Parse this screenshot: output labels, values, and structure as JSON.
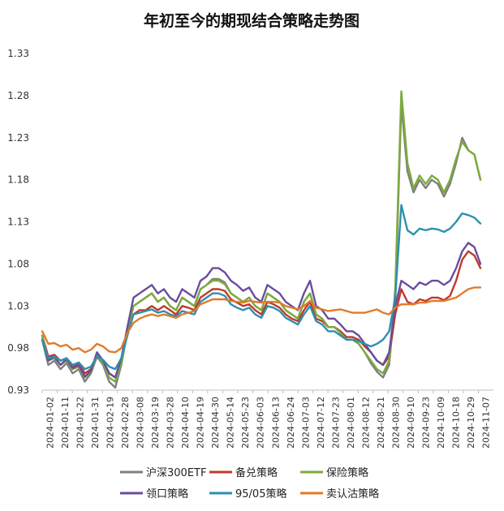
{
  "chart_data": {
    "type": "line",
    "title": "年初至今的期现结合策略走势图",
    "xlabel": "",
    "ylabel": "",
    "ylim": [
      0.93,
      1.33
    ],
    "y_ticks": [
      "0.93",
      "0.98",
      "1.03",
      "1.08",
      "1.13",
      "1.18",
      "1.23",
      "1.28",
      "1.33"
    ],
    "x_ticks": [
      "2024-01-02",
      "2024-01-11",
      "2024-01-22",
      "2024-01-31",
      "2024-02-19",
      "2024-02-28",
      "2024-03-08",
      "2024-03-19",
      "2024-03-28",
      "2024-04-10",
      "2024-04-19",
      "2024-04-30",
      "2024-05-14",
      "2024-05-23",
      "2024-06-03",
      "2024-06-13",
      "2024-06-24",
      "2024-07-03",
      "2024-07-12",
      "2024-07-23",
      "2024-08-01",
      "2024-08-12",
      "2024-08-21",
      "2024-08-30",
      "2024-09-10",
      "2024-09-23",
      "2024-10-09",
      "2024-10-18",
      "2024-10-29",
      "2024-11-07"
    ],
    "grid": "none",
    "legend_position": "bottom",
    "series": [
      {
        "name": "沪深300ETF",
        "color": "#7f7f7f",
        "values": [
          0.99,
          0.96,
          0.965,
          0.955,
          0.962,
          0.95,
          0.955,
          0.94,
          0.95,
          0.97,
          0.96,
          0.94,
          0.933,
          0.96,
          1.0,
          1.03,
          1.035,
          1.04,
          1.045,
          1.035,
          1.04,
          1.03,
          1.025,
          1.04,
          1.035,
          1.03,
          1.05,
          1.055,
          1.062,
          1.062,
          1.058,
          1.045,
          1.04,
          1.035,
          1.04,
          1.03,
          1.025,
          1.045,
          1.04,
          1.035,
          1.025,
          1.02,
          1.015,
          1.035,
          1.045,
          1.02,
          1.015,
          1.005,
          1.005,
          0.998,
          0.99,
          0.99,
          0.985,
          0.975,
          0.962,
          0.952,
          0.945,
          0.96,
          1.04,
          1.27,
          1.19,
          1.165,
          1.18,
          1.17,
          1.18,
          1.175,
          1.16,
          1.175,
          1.2,
          1.23,
          1.215,
          1.21,
          1.18
        ]
      },
      {
        "name": "备兑策略",
        "color": "#c0392b",
        "values": [
          0.995,
          0.97,
          0.972,
          0.965,
          0.968,
          0.958,
          0.962,
          0.95,
          0.955,
          0.97,
          0.965,
          0.95,
          0.945,
          0.965,
          1.0,
          1.02,
          1.025,
          1.025,
          1.03,
          1.025,
          1.03,
          1.025,
          1.02,
          1.03,
          1.028,
          1.025,
          1.04,
          1.045,
          1.05,
          1.05,
          1.048,
          1.038,
          1.034,
          1.03,
          1.032,
          1.025,
          1.02,
          1.035,
          1.032,
          1.028,
          1.02,
          1.015,
          1.012,
          1.025,
          1.035,
          1.015,
          1.012,
          1.005,
          1.005,
          1.0,
          0.993,
          0.993,
          0.99,
          0.982,
          0.975,
          0.965,
          0.96,
          0.97,
          1.02,
          1.05,
          1.035,
          1.032,
          1.038,
          1.036,
          1.04,
          1.04,
          1.037,
          1.042,
          1.06,
          1.085,
          1.095,
          1.09,
          1.075
        ]
      },
      {
        "name": "保险策略",
        "color": "#7cab3c",
        "values": [
          0.995,
          0.965,
          0.968,
          0.96,
          0.965,
          0.955,
          0.958,
          0.945,
          0.952,
          0.972,
          0.962,
          0.945,
          0.94,
          0.962,
          1.0,
          1.03,
          1.035,
          1.04,
          1.045,
          1.035,
          1.04,
          1.03,
          1.025,
          1.04,
          1.035,
          1.03,
          1.05,
          1.055,
          1.06,
          1.06,
          1.056,
          1.045,
          1.04,
          1.035,
          1.04,
          1.03,
          1.025,
          1.045,
          1.04,
          1.035,
          1.025,
          1.02,
          1.015,
          1.035,
          1.045,
          1.02,
          1.015,
          1.005,
          1.005,
          0.998,
          0.99,
          0.99,
          0.985,
          0.975,
          0.965,
          0.955,
          0.95,
          0.965,
          1.05,
          1.285,
          1.2,
          1.17,
          1.185,
          1.175,
          1.185,
          1.18,
          1.165,
          1.18,
          1.205,
          1.225,
          1.215,
          1.21,
          1.18
        ]
      },
      {
        "name": "领口策略",
        "color": "#6a4c9c",
        "values": [
          0.99,
          0.965,
          0.97,
          0.96,
          0.967,
          0.956,
          0.96,
          0.946,
          0.953,
          0.975,
          0.965,
          0.95,
          0.945,
          0.968,
          1.005,
          1.04,
          1.045,
          1.05,
          1.055,
          1.045,
          1.05,
          1.04,
          1.035,
          1.05,
          1.045,
          1.04,
          1.06,
          1.065,
          1.075,
          1.075,
          1.07,
          1.06,
          1.055,
          1.048,
          1.052,
          1.04,
          1.035,
          1.055,
          1.05,
          1.045,
          1.035,
          1.03,
          1.025,
          1.045,
          1.06,
          1.03,
          1.025,
          1.015,
          1.015,
          1.008,
          1.0,
          1.0,
          0.995,
          0.985,
          0.975,
          0.965,
          0.96,
          0.975,
          1.03,
          1.06,
          1.055,
          1.05,
          1.058,
          1.055,
          1.06,
          1.06,
          1.055,
          1.06,
          1.075,
          1.095,
          1.105,
          1.1,
          1.08
        ]
      },
      {
        "name": "95/05策略",
        "color": "#2e8fb0",
        "values": [
          0.99,
          0.968,
          0.97,
          0.965,
          0.968,
          0.96,
          0.963,
          0.955,
          0.958,
          0.97,
          0.966,
          0.958,
          0.955,
          0.968,
          0.995,
          1.02,
          1.022,
          1.024,
          1.026,
          1.022,
          1.024,
          1.02,
          1.018,
          1.024,
          1.022,
          1.02,
          1.035,
          1.04,
          1.045,
          1.045,
          1.042,
          1.032,
          1.028,
          1.025,
          1.028,
          1.02,
          1.016,
          1.03,
          1.028,
          1.024,
          1.016,
          1.012,
          1.008,
          1.02,
          1.03,
          1.012,
          1.008,
          1.0,
          1.0,
          0.995,
          0.99,
          0.99,
          0.988,
          0.985,
          0.982,
          0.985,
          0.99,
          1.0,
          1.04,
          1.15,
          1.12,
          1.115,
          1.122,
          1.12,
          1.122,
          1.121,
          1.118,
          1.122,
          1.13,
          1.14,
          1.138,
          1.135,
          1.128
        ]
      },
      {
        "name": "卖认沽策略",
        "color": "#e07b2a",
        "values": [
          1.0,
          0.985,
          0.986,
          0.982,
          0.984,
          0.978,
          0.98,
          0.975,
          0.978,
          0.985,
          0.982,
          0.976,
          0.975,
          0.98,
          0.998,
          1.01,
          1.015,
          1.018,
          1.02,
          1.018,
          1.02,
          1.018,
          1.016,
          1.02,
          1.022,
          1.024,
          1.032,
          1.035,
          1.038,
          1.038,
          1.038,
          1.036,
          1.035,
          1.034,
          1.036,
          1.035,
          1.034,
          1.035,
          1.035,
          1.034,
          1.03,
          1.028,
          1.026,
          1.03,
          1.036,
          1.028,
          1.026,
          1.024,
          1.025,
          1.026,
          1.024,
          1.022,
          1.022,
          1.022,
          1.024,
          1.026,
          1.022,
          1.02,
          1.028,
          1.032,
          1.032,
          1.032,
          1.034,
          1.034,
          1.036,
          1.036,
          1.036,
          1.038,
          1.04,
          1.045,
          1.05,
          1.052,
          1.052
        ]
      }
    ]
  }
}
